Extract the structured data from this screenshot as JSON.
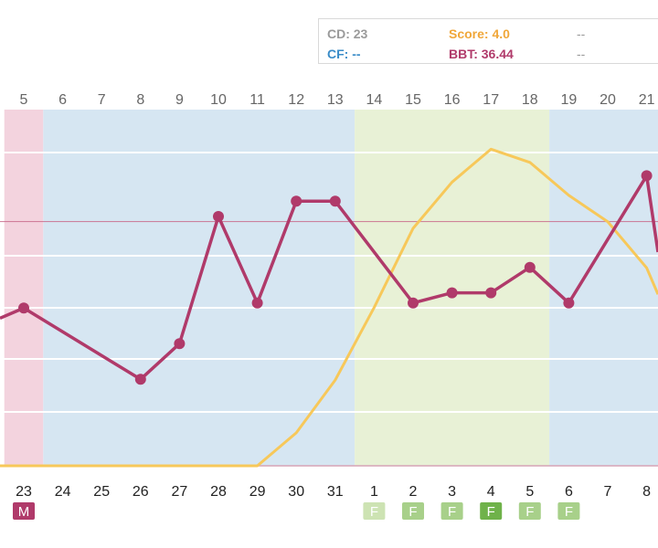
{
  "info": {
    "cd_text": "CD: 23",
    "cf_text": "CF: --",
    "score_text": "Score: 4.0",
    "bbt_text": "BBT: 36.44",
    "dash1": "--",
    "dash2": "--"
  },
  "colors": {
    "temp_line": "#b03a6a",
    "score_line": "#f7c85a",
    "menstrual_band": "#f3d3de",
    "follicular_band": "#d6e6f2",
    "fertile_band": "#e8f1d6",
    "luteal_band": "#d6e6f2",
    "cover_line": "#c96a8a",
    "m_badge": "#b03a6a",
    "f_badge_light": "#cde3b3",
    "f_badge_mid": "#a8d08a",
    "f_badge_dark": "#6fb24a"
  },
  "chart_data": {
    "type": "line",
    "top_labels": [
      "5",
      "6",
      "7",
      "8",
      "9",
      "10",
      "11",
      "12",
      "13",
      "14",
      "15",
      "16",
      "17",
      "18",
      "19",
      "20",
      "21"
    ],
    "bottom_labels": [
      "23",
      "24",
      "25",
      "26",
      "27",
      "28",
      "29",
      "30",
      "31",
      "1",
      "2",
      "3",
      "4",
      "5",
      "6",
      "7",
      "8"
    ],
    "series": [
      {
        "key": "temperature",
        "values": [
          36.43,
          null,
          null,
          36.29,
          36.36,
          36.61,
          36.44,
          36.64,
          36.64,
          null,
          36.44,
          36.46,
          36.46,
          36.51,
          36.44,
          null,
          36.69
        ]
      },
      {
        "key": "score",
        "values": [
          0.0,
          0.0,
          0.0,
          0.0,
          0.0,
          0.0,
          0.0,
          0.5,
          1.3,
          2.4,
          3.6,
          4.3,
          4.8,
          4.6,
          4.1,
          3.7,
          3.0
        ]
      }
    ],
    "edges": {
      "temperature_left": 36.41,
      "temperature_right": 36.54,
      "score_left": 0.0,
      "score_right": 2.6
    },
    "cover_line_value": 36.6,
    "ylim_temperature": [
      36.12,
      36.82
    ],
    "ylim_score": [
      0.0,
      5.4
    ],
    "bands": [
      {
        "phase": "menstrual",
        "from": -0.5,
        "to": 0.5
      },
      {
        "phase": "follicular",
        "from": 0.5,
        "to": 8.5
      },
      {
        "phase": "fertile",
        "from": 8.5,
        "to": 13.5
      },
      {
        "phase": "luteal",
        "from": 13.5,
        "to": 16.5
      }
    ],
    "badges": [
      {
        "index": 0,
        "text": "M",
        "color": "m_badge"
      },
      {
        "index": 9,
        "text": "F",
        "color": "f_badge_light"
      },
      {
        "index": 10,
        "text": "F",
        "color": "f_badge_mid"
      },
      {
        "index": 11,
        "text": "F",
        "color": "f_badge_mid"
      },
      {
        "index": 12,
        "text": "F",
        "color": "f_badge_dark"
      },
      {
        "index": 13,
        "text": "F",
        "color": "f_badge_mid"
      },
      {
        "index": 14,
        "text": "F",
        "color": "f_badge_mid"
      }
    ]
  }
}
